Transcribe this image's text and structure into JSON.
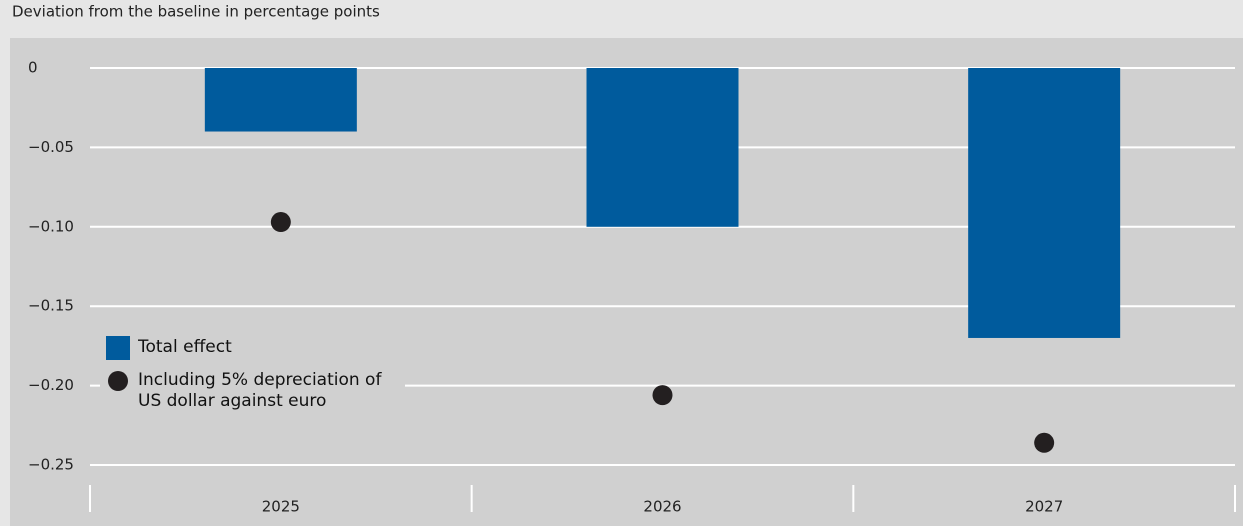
{
  "chart_data": {
    "type": "bar",
    "subtitle": "Deviation from the baseline in percentage points",
    "categories": [
      "2025",
      "2026",
      "2027"
    ],
    "series": [
      {
        "name": "Total effect",
        "type": "bar",
        "color": "#005b9d",
        "values": [
          -0.04,
          -0.1,
          -0.17
        ]
      },
      {
        "name": "Including 5% depreciation of US dollar against euro",
        "type": "scatter",
        "color": "#231f20",
        "values": [
          -0.097,
          -0.206,
          -0.236
        ]
      }
    ],
    "ylim": [
      -0.25,
      0
    ],
    "yticks": [
      0,
      {
        "value": -0.05,
        "label": "−0.05"
      },
      {
        "value": -0.1,
        "label": "−0.10"
      },
      {
        "value": -0.15,
        "label": "−0.15"
      },
      {
        "value": -0.2,
        "label": "−0.20"
      },
      {
        "value": -0.25,
        "label": "−0.25"
      }
    ],
    "grid": true
  }
}
